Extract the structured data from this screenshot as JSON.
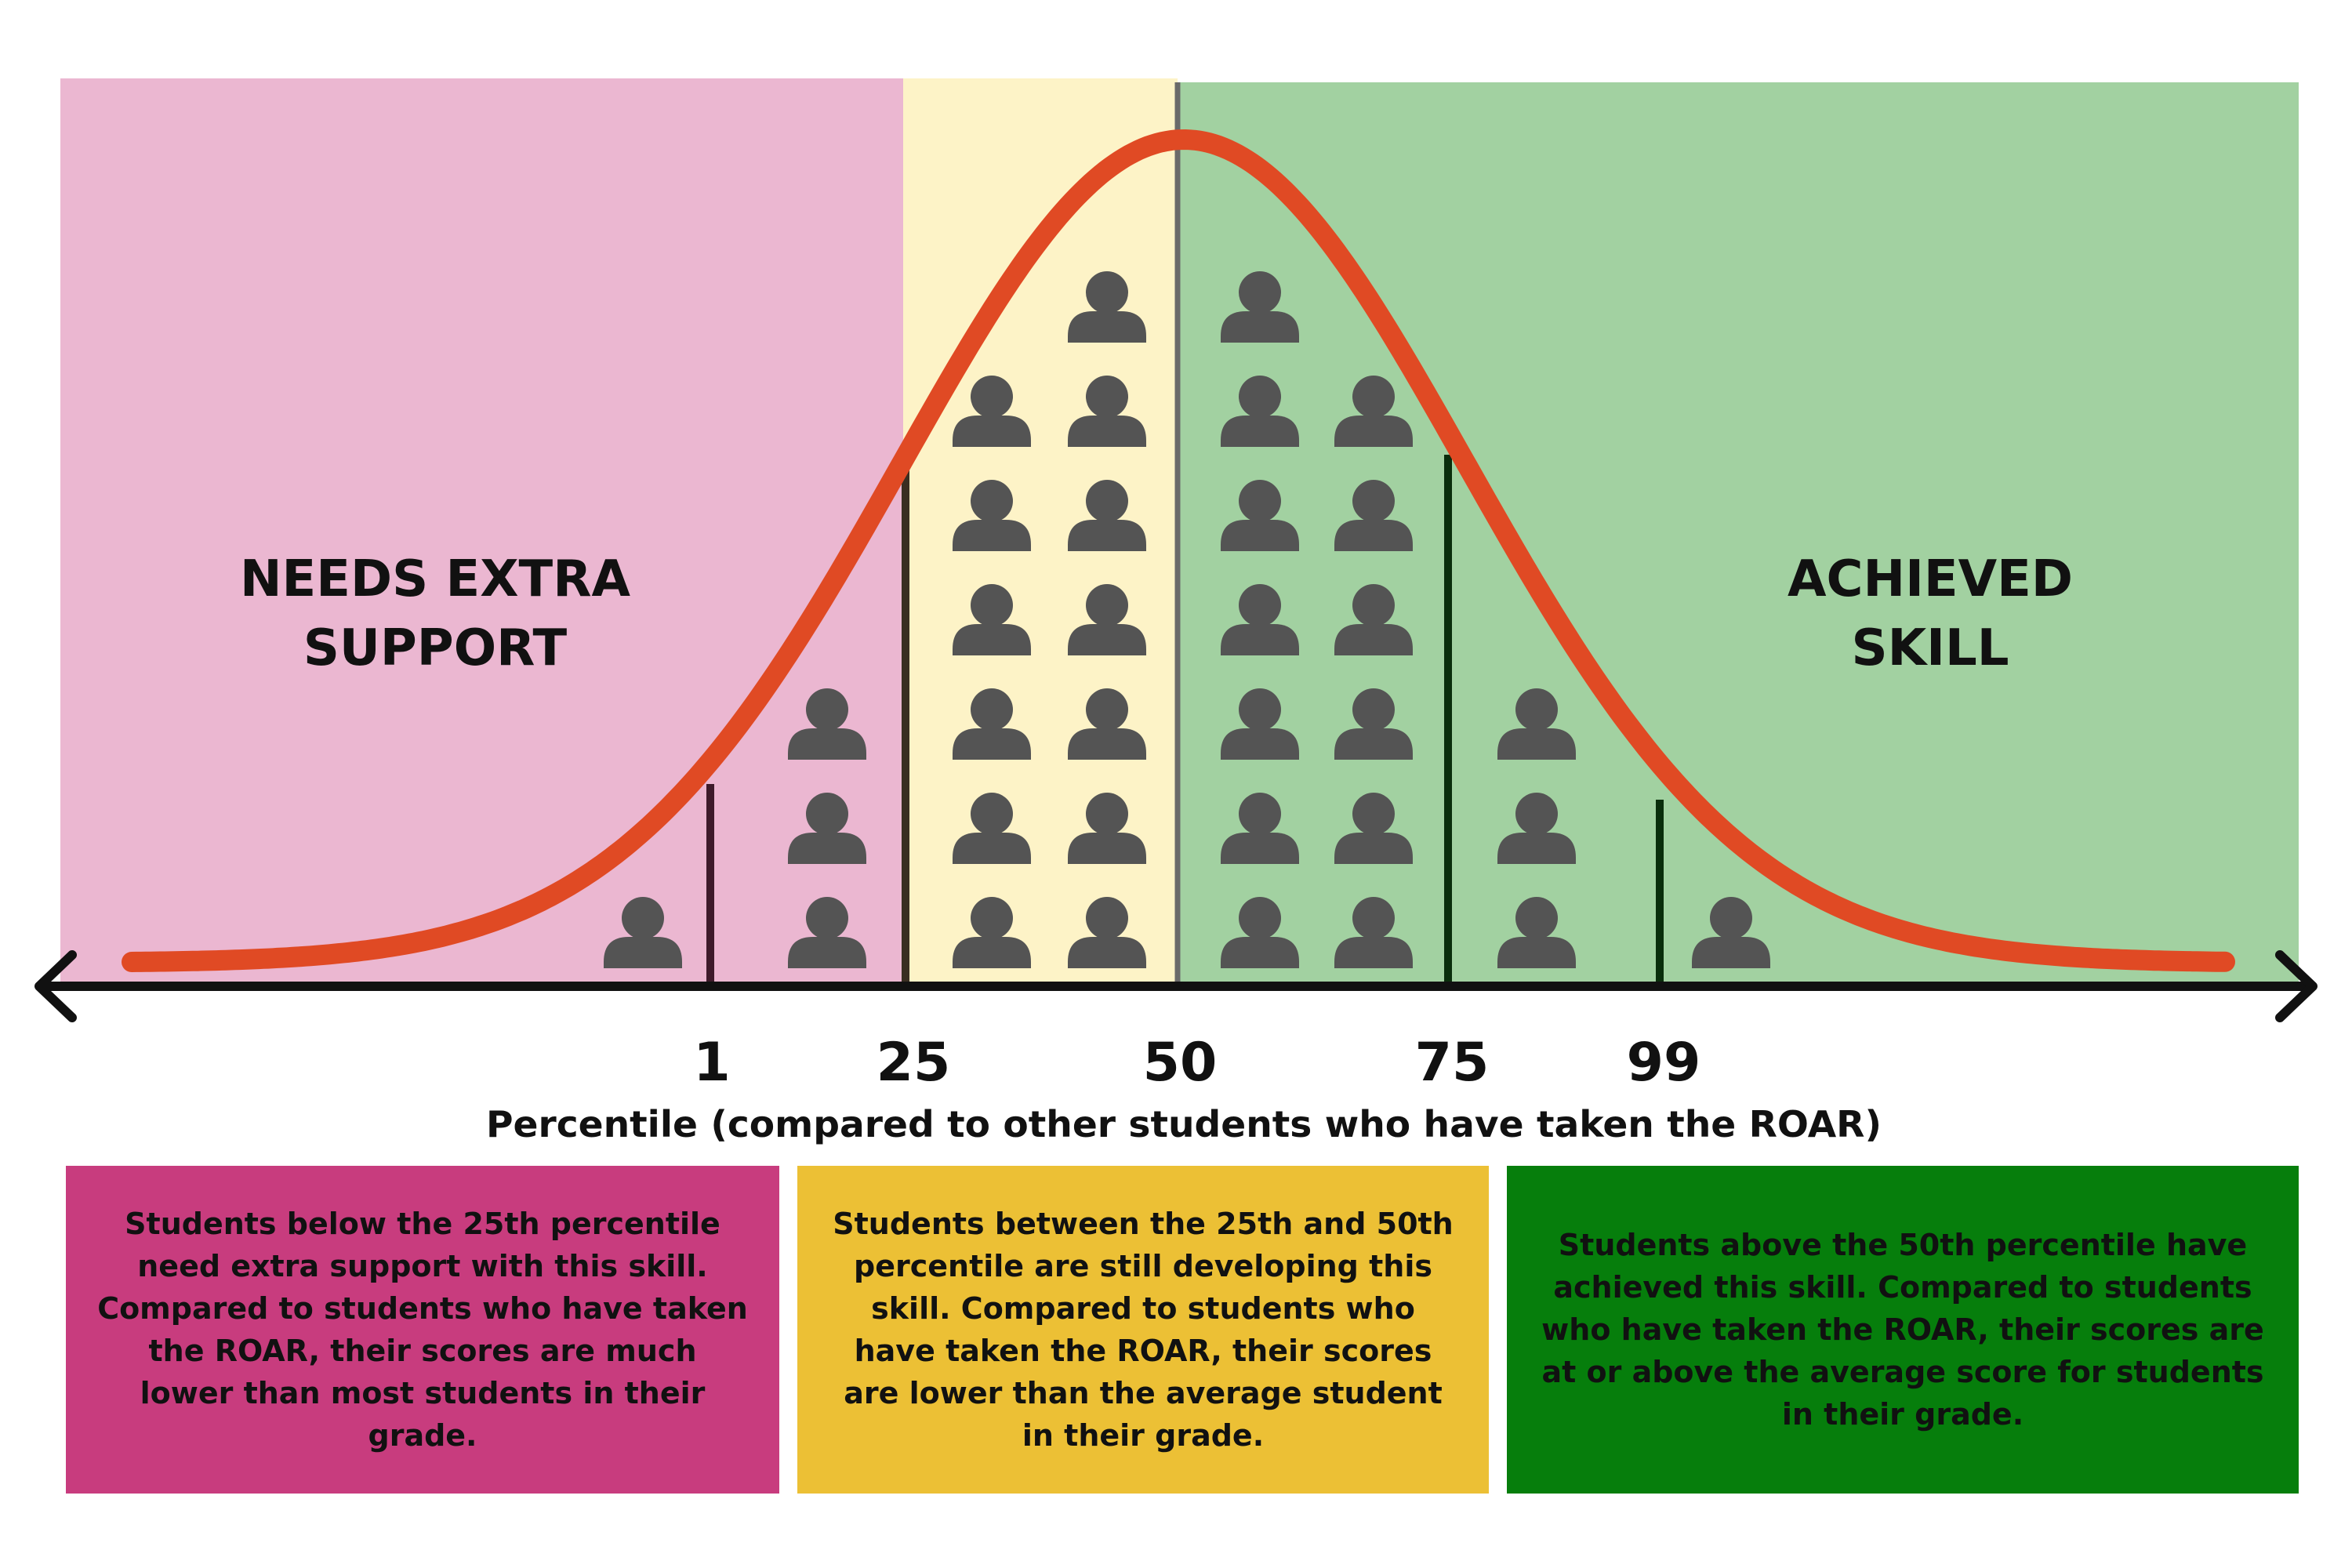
{
  "zones": {
    "left_title_line1": "NEEDS EXTRA",
    "left_title_line2": "SUPPORT",
    "right_title_line1": "ACHIEVED",
    "right_title_line2": "SKILL"
  },
  "axis": {
    "title": "Percentile (compared to other students who have taken the ROAR)",
    "ticks": [
      "1",
      "25",
      "50",
      "75",
      "99"
    ]
  },
  "people_columns": [
    1,
    3,
    6,
    7,
    7,
    6,
    3,
    1
  ],
  "colors": {
    "needs_support_zone": "#ebb7d1",
    "developing_zone": "#fdf3c7",
    "achieved_zone": "#a2d1a1",
    "curve": "#e04a24",
    "person_icon": "#545454",
    "needs_support_box": "#c83c7e",
    "developing_box": "#ecc035",
    "achieved_box": "#067e0c"
  },
  "descriptions": {
    "needs_support": "Students below the 25th percentile need extra support with this skill. Compared to students who have taken the ROAR, their scores are much lower than most students in their grade.",
    "developing": "Students between the 25th and 50th percentile are still developing this skill. Compared to students who have taken the ROAR, their scores are lower than the average student in their grade.",
    "achieved": "Students above the 50th percentile have achieved this skill. Compared to students who have taken the ROAR, their scores are at or above the average score for students in their grade."
  }
}
